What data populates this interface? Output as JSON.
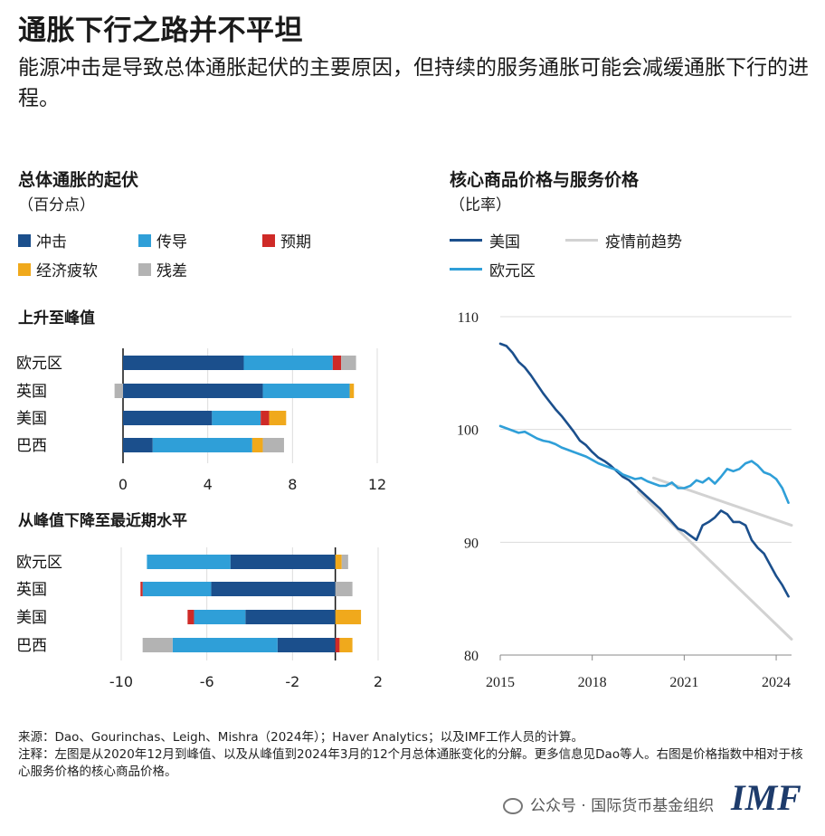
{
  "title": "通胀下行之路并不平坦",
  "subtitle": "能源冲击是导致总体通胀起伏的主要原因，但持续的服务通胀可能会减缓通胀下行的进程。",
  "colors": {
    "shock": "#1b4f8c",
    "passthrough": "#2f9fd8",
    "expectations": "#cf2a27",
    "slack": "#f0a91c",
    "residual": "#b3b3b3",
    "us": "#1b4f8c",
    "euro": "#2f9fd8",
    "trend": "#d2d2d2"
  },
  "left_panel": {
    "title": "总体通胀的起伏",
    "unit": "（百分点）",
    "legend": [
      "冲击",
      "传导",
      "预期",
      "经济疲软",
      "残差"
    ],
    "top_title": "上升至峰值",
    "bottom_title": "从峰值下降至最近期水平"
  },
  "right_panel": {
    "title": "核心商品价格与服务价格",
    "unit": "（比率）",
    "legend": [
      "美国",
      "疫情前趋势",
      "欧元区"
    ]
  },
  "chart_data": [
    {
      "type": "bar",
      "orientation": "horizontal",
      "stacked": true,
      "title": "上升至峰值",
      "categories": [
        "欧元区",
        "英国",
        "美国",
        "巴西"
      ],
      "series": [
        {
          "name": "冲击",
          "values": [
            5.7,
            6.6,
            4.2,
            1.4
          ]
        },
        {
          "name": "传导",
          "values": [
            4.2,
            4.1,
            2.3,
            4.7
          ]
        },
        {
          "name": "预期",
          "values": [
            0.4,
            0.0,
            0.4,
            0.0
          ]
        },
        {
          "name": "经济疲软",
          "values": [
            0.0,
            0.2,
            0.8,
            0.5
          ]
        },
        {
          "name": "残差",
          "values": [
            0.7,
            -0.4,
            0.0,
            1.0
          ]
        }
      ],
      "xlim": [
        0,
        12
      ],
      "xticks": [
        0,
        4,
        8,
        12
      ]
    },
    {
      "type": "bar",
      "orientation": "horizontal",
      "stacked": true,
      "title": "从峰值下降至最近期水平",
      "categories": [
        "欧元区",
        "英国",
        "美国",
        "巴西"
      ],
      "series": [
        {
          "name": "冲击",
          "values": [
            -4.9,
            -5.8,
            -4.2,
            -2.7
          ]
        },
        {
          "name": "传导",
          "values": [
            -3.9,
            -3.2,
            -2.4,
            -4.9
          ]
        },
        {
          "name": "预期",
          "values": [
            0.0,
            -0.1,
            -0.3,
            0.2
          ]
        },
        {
          "name": "经济疲软",
          "values": [
            0.3,
            0.0,
            1.2,
            0.6
          ]
        },
        {
          "name": "残差",
          "values": [
            0.3,
            0.8,
            0.0,
            -1.4
          ]
        }
      ],
      "xlim": [
        -10,
        2
      ],
      "xticks": [
        -10,
        -6,
        -2,
        2
      ]
    },
    {
      "type": "line",
      "title": "核心商品价格与服务价格",
      "ylim": [
        80,
        110
      ],
      "yticks": [
        80,
        90,
        100,
        110
      ],
      "xlim": [
        2015,
        2024.5
      ],
      "xticks": [
        2015,
        2018,
        2021,
        2024
      ],
      "series": [
        {
          "name": "美国",
          "x": [
            2015.0,
            2015.2,
            2015.4,
            2015.6,
            2015.8,
            2016.0,
            2016.2,
            2016.4,
            2016.6,
            2016.8,
            2017.0,
            2017.2,
            2017.4,
            2017.6,
            2017.8,
            2018.0,
            2018.2,
            2018.4,
            2018.6,
            2018.8,
            2019.0,
            2019.2,
            2019.4,
            2019.6,
            2019.8,
            2020.0,
            2020.2,
            2020.4,
            2020.6,
            2020.8,
            2021.0,
            2021.2,
            2021.4,
            2021.6,
            2021.8,
            2022.0,
            2022.2,
            2022.4,
            2022.6,
            2022.8,
            2023.0,
            2023.2,
            2023.4,
            2023.6,
            2023.8,
            2024.0,
            2024.2,
            2024.4
          ],
          "y": [
            107.6,
            107.4,
            106.8,
            106.0,
            105.5,
            104.8,
            104.0,
            103.2,
            102.5,
            101.8,
            101.2,
            100.5,
            99.8,
            99.0,
            98.6,
            98.0,
            97.5,
            97.2,
            96.8,
            96.3,
            95.8,
            95.5,
            95.0,
            94.5,
            94.0,
            93.5,
            93.0,
            92.4,
            91.8,
            91.2,
            91.0,
            90.6,
            90.2,
            91.5,
            91.8,
            92.2,
            92.8,
            92.5,
            91.8,
            91.8,
            91.5,
            90.2,
            89.5,
            89.0,
            88.0,
            87.0,
            86.2,
            85.2
          ]
        },
        {
          "name": "欧元区",
          "x": [
            2015.0,
            2015.2,
            2015.4,
            2015.6,
            2015.8,
            2016.0,
            2016.2,
            2016.4,
            2016.6,
            2016.8,
            2017.0,
            2017.2,
            2017.4,
            2017.6,
            2017.8,
            2018.0,
            2018.2,
            2018.4,
            2018.6,
            2018.8,
            2019.0,
            2019.2,
            2019.4,
            2019.6,
            2019.8,
            2020.0,
            2020.2,
            2020.4,
            2020.6,
            2020.8,
            2021.0,
            2021.2,
            2021.4,
            2021.6,
            2021.8,
            2022.0,
            2022.2,
            2022.4,
            2022.6,
            2022.8,
            2023.0,
            2023.2,
            2023.4,
            2023.6,
            2023.8,
            2024.0,
            2024.2,
            2024.4
          ],
          "y": [
            100.3,
            100.1,
            99.9,
            99.7,
            99.8,
            99.5,
            99.2,
            99.0,
            98.9,
            98.7,
            98.4,
            98.2,
            98.0,
            97.8,
            97.6,
            97.3,
            97.0,
            96.8,
            96.6,
            96.4,
            96.0,
            95.8,
            95.6,
            95.7,
            95.4,
            95.2,
            95.0,
            95.0,
            95.3,
            94.8,
            94.8,
            95.0,
            95.5,
            95.3,
            95.7,
            95.2,
            95.8,
            96.5,
            96.3,
            96.5,
            97.0,
            97.2,
            96.8,
            96.2,
            96.0,
            95.6,
            94.8,
            93.5
          ]
        },
        {
          "name": "疫情前趋势",
          "x": [
            2020.0,
            2024.5
          ],
          "y": [
            95.7,
            91.5
          ]
        },
        {
          "name": "疫情前趋势",
          "x": [
            2019.5,
            2024.5
          ],
          "y": [
            94.5,
            81.4
          ]
        }
      ]
    }
  ],
  "footer": {
    "source": "来源：Dao、Gourinchas、Leigh、Mishra（2024年）；Haver Analytics；以及IMF工作人员的计算。",
    "notes": "注释：左图是从2020年12月到峰值、以及从峰值到2024年3月的12个月总体通胀变化的分解。更多信息见Dao等人。右图是价格指数中相对于核心服务价格的核心商品价格。"
  },
  "watermark": "公众号 · 国际货币基金组织",
  "logo": "IMF"
}
